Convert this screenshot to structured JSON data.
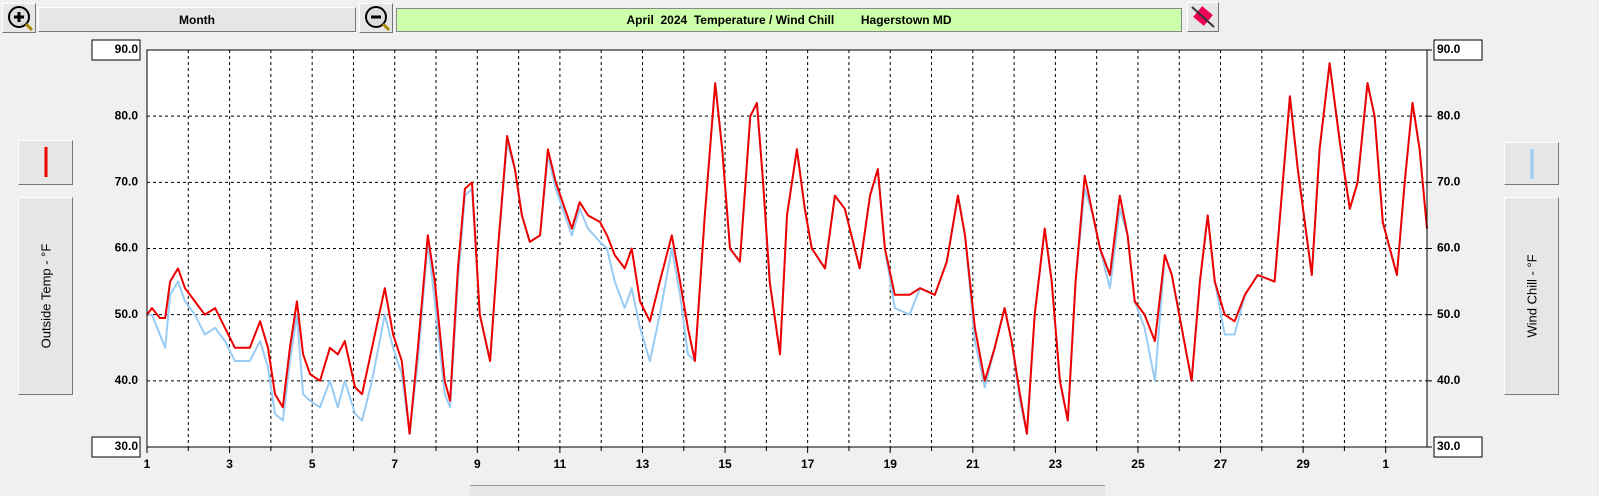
{
  "toolbar": {
    "period": "Month"
  },
  "chart_data": {
    "type": "line",
    "title": "April  2024  Temperature / Wind Chill        Hagerstown MD",
    "y_label": "Outside Temp - °F",
    "y2_label": "Wind Chill - °F",
    "xlim": [
      1,
      32
    ],
    "xticks": [
      1,
      3,
      5,
      7,
      9,
      11,
      13,
      15,
      17,
      19,
      21,
      23,
      25,
      27,
      29,
      {
        "value": 31,
        "label": "1"
      }
    ],
    "ylim": [
      30,
      90
    ],
    "yticks": [
      {
        "value": 30,
        "label": "30.0"
      },
      {
        "value": 40,
        "label": "40.0"
      },
      {
        "value": 50,
        "label": "50.0"
      },
      {
        "value": 60,
        "label": "60.0"
      },
      {
        "value": 70,
        "label": "70.0"
      },
      {
        "value": 80,
        "label": "80.0"
      },
      {
        "value": 90,
        "label": "90.0"
      }
    ],
    "y2lim": [
      30,
      90
    ],
    "y2ticks": [
      {
        "value": 30,
        "label": "30.0"
      },
      {
        "value": 40,
        "label": "40.0"
      },
      {
        "value": 50,
        "label": "50.0"
      },
      {
        "value": 60,
        "label": "60.0"
      },
      {
        "value": 70,
        "label": "70.0"
      },
      {
        "value": 80,
        "label": "80.0"
      },
      {
        "value": 90,
        "label": "90.0"
      }
    ],
    "grid": true,
    "x": [
      1.0,
      1.12,
      1.31,
      1.44,
      1.56,
      1.75,
      1.92,
      2.16,
      2.4,
      2.65,
      2.89,
      3.13,
      3.49,
      3.74,
      3.93,
      4.1,
      4.29,
      4.46,
      4.63,
      4.78,
      4.95,
      5.19,
      5.43,
      5.62,
      5.79,
      6.04,
      6.21,
      6.45,
      6.76,
      6.96,
      7.17,
      7.36,
      7.56,
      7.8,
      7.97,
      8.21,
      8.34,
      8.53,
      8.7,
      8.87,
      9.06,
      9.31,
      9.5,
      9.72,
      9.91,
      10.08,
      10.27,
      10.52,
      10.71,
      10.9,
      11.12,
      11.29,
      11.48,
      11.68,
      11.97,
      12.14,
      12.33,
      12.57,
      12.74,
      12.94,
      13.18,
      13.42,
      13.71,
      13.91,
      14.1,
      14.27,
      14.51,
      14.76,
      14.93,
      15.12,
      15.36,
      15.61,
      15.77,
      15.92,
      16.08,
      16.33,
      16.5,
      16.74,
      16.93,
      17.1,
      17.42,
      17.66,
      17.9,
      18.14,
      18.26,
      18.51,
      18.7,
      18.87,
      19.11,
      19.47,
      19.72,
      20.08,
      20.37,
      20.64,
      20.81,
      21.05,
      21.29,
      21.53,
      21.77,
      21.94,
      22.14,
      22.31,
      22.5,
      22.74,
      22.91,
      23.11,
      23.3,
      23.49,
      23.71,
      23.91,
      24.08,
      24.32,
      24.56,
      24.75,
      24.92,
      25.16,
      25.41,
      25.65,
      25.82,
      26.06,
      26.3,
      26.5,
      26.69,
      26.86,
      27.1,
      27.34,
      27.59,
      27.9,
      28.31,
      28.68,
      28.87,
      29.21,
      29.4,
      29.64,
      29.89,
      30.13,
      30.32,
      30.56,
      30.73,
      30.93,
      31.1,
      31.27,
      31.46,
      31.65,
      31.82,
      32.0
    ],
    "series": [
      {
        "name": "Wind Chill",
        "color": "#99ccf5",
        "axis": "y2",
        "values": [
          50,
          50,
          47,
          45,
          53,
          55,
          52,
          50,
          47,
          48,
          46,
          43,
          43,
          46,
          42,
          35,
          34,
          43,
          50,
          38,
          37,
          36,
          40,
          36,
          40,
          35,
          34,
          40,
          50,
          45,
          41,
          32,
          43,
          61,
          52,
          38,
          36,
          55,
          68,
          69,
          50,
          43,
          60,
          76,
          72,
          65,
          61,
          62,
          74,
          69,
          65,
          62,
          66,
          63,
          61,
          60,
          55,
          51,
          54,
          48,
          43,
          50,
          60,
          53,
          44,
          43,
          65,
          85,
          75,
          60,
          58,
          80,
          82,
          70,
          55,
          44,
          65,
          75,
          66,
          60,
          57,
          68,
          66,
          60,
          57,
          68,
          72,
          60,
          51,
          50,
          54,
          53,
          58,
          68,
          62,
          46,
          39,
          45,
          51,
          46,
          37,
          32,
          50,
          63,
          55,
          40,
          34,
          55,
          69,
          65,
          60,
          54,
          66,
          62,
          52,
          48,
          40,
          59,
          56,
          48,
          40,
          55,
          65,
          55,
          47,
          47,
          53,
          56,
          55,
          83,
          72,
          56,
          75,
          88,
          76,
          66,
          70,
          85,
          80,
          64,
          60,
          56,
          70,
          82,
          75,
          63
        ]
      },
      {
        "name": "Outside Temp",
        "color": "#ee0000",
        "values": [
          50,
          51,
          49.5,
          49.5,
          55,
          57,
          54,
          52,
          50,
          51,
          48,
          45,
          45,
          49,
          45,
          38,
          36,
          45,
          52,
          44,
          41,
          40,
          45,
          44,
          46,
          39,
          38,
          45,
          54,
          47,
          43,
          32,
          45,
          62,
          55,
          40,
          37,
          57,
          69,
          70,
          50,
          43,
          60,
          77,
          72,
          65,
          61,
          62,
          75,
          70,
          66,
          63,
          67,
          65,
          64,
          62,
          59,
          57,
          60,
          52,
          49,
          55,
          62,
          55,
          48,
          43,
          65,
          85,
          75,
          60,
          58,
          80,
          82,
          70,
          55,
          44,
          65,
          75,
          66,
          60,
          57,
          68,
          66,
          60,
          57,
          68,
          72,
          60,
          53,
          53,
          54,
          53,
          58,
          68,
          62,
          48,
          40,
          45,
          51,
          46,
          38,
          32,
          50,
          63,
          55,
          40,
          34,
          55,
          71,
          65,
          60,
          56,
          68,
          62,
          52,
          50,
          46,
          59,
          56,
          48,
          40,
          55,
          65,
          55,
          50,
          49,
          53,
          56,
          55,
          83,
          72,
          56,
          75,
          88,
          76,
          66,
          70,
          85,
          80,
          64,
          60,
          56,
          70,
          82,
          75,
          63
        ]
      }
    ]
  }
}
